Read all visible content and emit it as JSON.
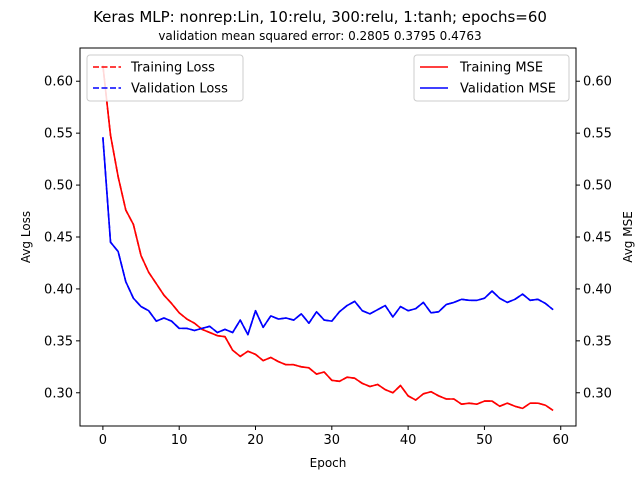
{
  "chart_data": {
    "type": "line",
    "title": "Keras MLP: nonrep:Lin, 10:relu, 300:relu, 1:tanh; epochs=60",
    "subtitle": "validation mean squared error:  0.2805  0.3795  0.4763",
    "xlabel": "Epoch",
    "ylabel_left": "Avg Loss",
    "ylabel_right": "Avg MSE",
    "xlim": [
      -3,
      62
    ],
    "ylim": [
      0.268,
      0.632
    ],
    "xticks": [
      0,
      10,
      20,
      30,
      40,
      50,
      60
    ],
    "yticks": [
      0.3,
      0.35,
      0.4,
      0.45,
      0.5,
      0.55,
      0.6
    ],
    "ytick_labels": [
      "0.30",
      "0.35",
      "0.40",
      "0.45",
      "0.50",
      "0.55",
      "0.60"
    ],
    "grid": false,
    "x": [
      0,
      1,
      2,
      3,
      4,
      5,
      6,
      7,
      8,
      9,
      10,
      11,
      12,
      13,
      14,
      15,
      16,
      17,
      18,
      19,
      20,
      21,
      22,
      23,
      24,
      25,
      26,
      27,
      28,
      29,
      30,
      31,
      32,
      33,
      34,
      35,
      36,
      37,
      38,
      39,
      40,
      41,
      42,
      43,
      44,
      45,
      46,
      47,
      48,
      49,
      50,
      51,
      52,
      53,
      54,
      55,
      56,
      57,
      58,
      59
    ],
    "series": [
      {
        "name": "Training Loss",
        "color": "#ff0000",
        "style": "dashed",
        "axis": "left",
        "values": [
          0.615,
          0.548,
          0.508,
          0.476,
          0.462,
          0.432,
          0.416,
          0.405,
          0.394,
          0.386,
          0.377,
          0.371,
          0.367,
          0.361,
          0.358,
          0.355,
          0.354,
          0.341,
          0.335,
          0.34,
          0.337,
          0.331,
          0.334,
          0.33,
          0.327,
          0.327,
          0.325,
          0.324,
          0.318,
          0.32,
          0.312,
          0.311,
          0.315,
          0.314,
          0.309,
          0.306,
          0.308,
          0.303,
          0.3,
          0.307,
          0.297,
          0.293,
          0.299,
          0.301,
          0.297,
          0.294,
          0.294,
          0.289,
          0.29,
          0.289,
          0.292,
          0.292,
          0.287,
          0.29,
          0.287,
          0.285,
          0.29,
          0.29,
          0.288,
          0.283
        ]
      },
      {
        "name": "Validation Loss",
        "color": "#0000ff",
        "style": "dashed",
        "axis": "left",
        "values": [
          0.546,
          0.445,
          0.436,
          0.407,
          0.391,
          0.383,
          0.379,
          0.369,
          0.372,
          0.369,
          0.362,
          0.362,
          0.36,
          0.362,
          0.364,
          0.358,
          0.361,
          0.358,
          0.37,
          0.356,
          0.379,
          0.363,
          0.374,
          0.371,
          0.372,
          0.37,
          0.376,
          0.367,
          0.378,
          0.37,
          0.369,
          0.378,
          0.384,
          0.388,
          0.379,
          0.376,
          0.38,
          0.384,
          0.373,
          0.383,
          0.379,
          0.381,
          0.387,
          0.377,
          0.378,
          0.385,
          0.387,
          0.39,
          0.389,
          0.389,
          0.391,
          0.398,
          0.391,
          0.387,
          0.39,
          0.395,
          0.389,
          0.39,
          0.386,
          0.38
        ]
      },
      {
        "name": "Training MSE",
        "color": "#ff0000",
        "style": "solid",
        "axis": "right",
        "values": [
          0.615,
          0.548,
          0.508,
          0.476,
          0.462,
          0.432,
          0.416,
          0.405,
          0.394,
          0.386,
          0.377,
          0.371,
          0.367,
          0.361,
          0.358,
          0.355,
          0.354,
          0.341,
          0.335,
          0.34,
          0.337,
          0.331,
          0.334,
          0.33,
          0.327,
          0.327,
          0.325,
          0.324,
          0.318,
          0.32,
          0.312,
          0.311,
          0.315,
          0.314,
          0.309,
          0.306,
          0.308,
          0.303,
          0.3,
          0.307,
          0.297,
          0.293,
          0.299,
          0.301,
          0.297,
          0.294,
          0.294,
          0.289,
          0.29,
          0.289,
          0.292,
          0.292,
          0.287,
          0.29,
          0.287,
          0.285,
          0.29,
          0.29,
          0.288,
          0.283
        ]
      },
      {
        "name": "Validation MSE",
        "color": "#0000ff",
        "style": "solid",
        "axis": "right",
        "values": [
          0.546,
          0.445,
          0.436,
          0.407,
          0.391,
          0.383,
          0.379,
          0.369,
          0.372,
          0.369,
          0.362,
          0.362,
          0.36,
          0.362,
          0.364,
          0.358,
          0.361,
          0.358,
          0.37,
          0.356,
          0.379,
          0.363,
          0.374,
          0.371,
          0.372,
          0.37,
          0.376,
          0.367,
          0.378,
          0.37,
          0.369,
          0.378,
          0.384,
          0.388,
          0.379,
          0.376,
          0.38,
          0.384,
          0.373,
          0.383,
          0.379,
          0.381,
          0.387,
          0.377,
          0.378,
          0.385,
          0.387,
          0.39,
          0.389,
          0.389,
          0.391,
          0.398,
          0.391,
          0.387,
          0.39,
          0.395,
          0.389,
          0.39,
          0.386,
          0.38
        ]
      }
    ],
    "legends": [
      {
        "placement": "upper left",
        "entries": [
          "Training Loss",
          "Validation Loss"
        ]
      },
      {
        "placement": "upper right",
        "entries": [
          "Training MSE",
          "Validation MSE"
        ]
      }
    ]
  }
}
